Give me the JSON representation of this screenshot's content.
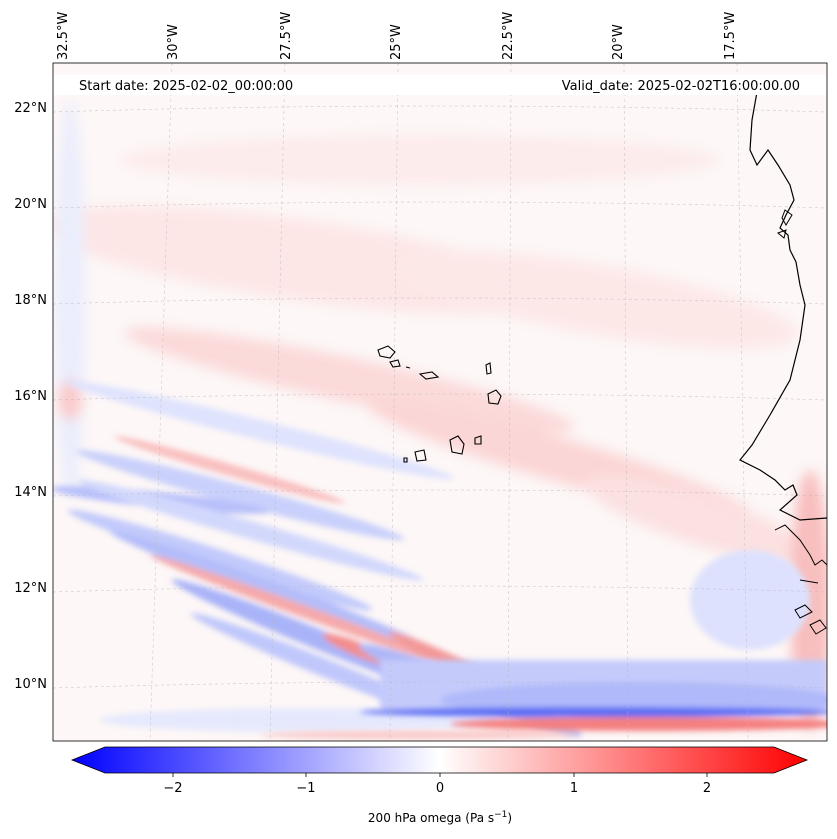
{
  "header": {
    "start_date": "Start date: 2025-02-02_00:00:00",
    "valid_date": "Valid_date: 2025-02-02T16:00:00.00"
  },
  "map": {
    "lon_labels": [
      "32.5°W",
      "30°W",
      "27.5°W",
      "25°W",
      "22.5°W",
      "20°W",
      "17.5°W"
    ],
    "lat_labels": [
      "22°N",
      "20°N",
      "18°N",
      "16°N",
      "14°N",
      "12°N",
      "10°N"
    ]
  },
  "colorbar": {
    "tick_labels": [
      "−2",
      "−1",
      "0",
      "1",
      "2"
    ],
    "label_main": "200 hPa omega (Pa s",
    "label_sup": "−1",
    "label_end": ")",
    "low_color": "#0000ff",
    "mid_color": "#ffffff",
    "high_color": "#ff0000"
  }
}
